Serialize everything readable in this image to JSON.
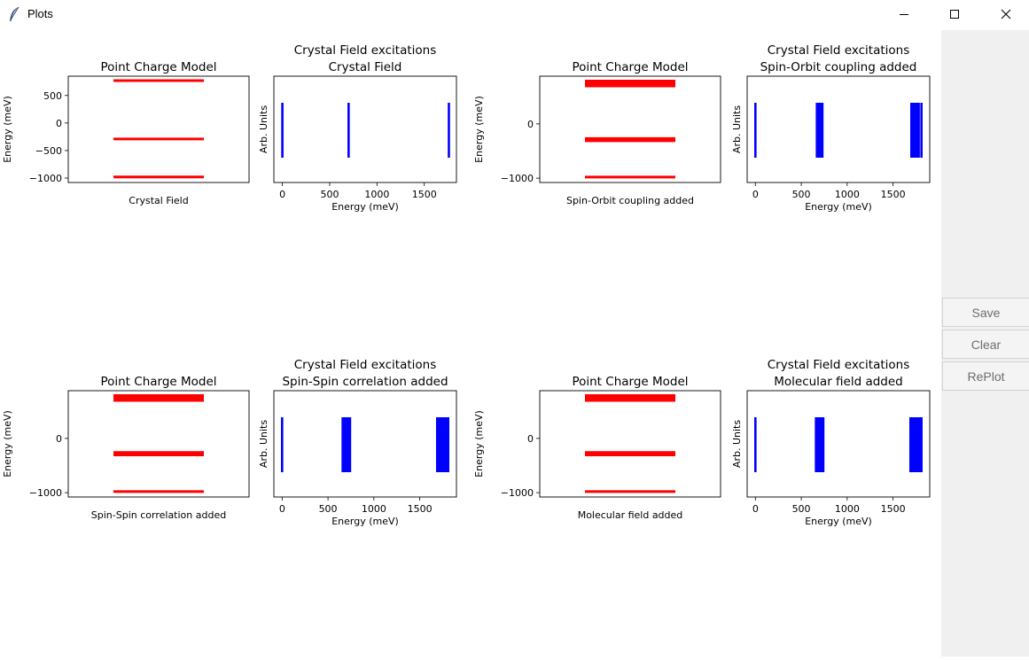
{
  "window": {
    "title": "Plots"
  },
  "side_panel": {
    "save_label": "Save",
    "clear_label": "Clear",
    "replot_label": "RePlot"
  },
  "colors": {
    "levels": "#ff0000",
    "excitations": "#0000ff"
  },
  "chart_data": [
    {
      "type": "energy-levels",
      "title": "Point Charge Model",
      "xlabel": "Crystal Field",
      "ylabel": "Energy (meV)",
      "ylim": [
        -1080,
        850
      ],
      "yticks": [
        500,
        0,
        -500,
        -1000
      ],
      "ytick_labels": [
        "500",
        "0",
        "−500",
        "−1000"
      ],
      "levels": [
        770,
        -290,
        -980
      ],
      "color": "#ff0000"
    },
    {
      "type": "excitations",
      "title": "Crystal Field excitations",
      "subtitle": "Crystal Field",
      "xlabel": "Energy (meV)",
      "ylabel": "Arb. Units",
      "xlim": [
        -90,
        1840
      ],
      "xticks": [
        0,
        500,
        1000,
        1500
      ],
      "xtick_labels": [
        "0",
        "500",
        "1000",
        "1500"
      ],
      "lines": [
        0,
        700,
        1760
      ],
      "color": "#0000ff"
    },
    {
      "type": "energy-levels",
      "title": "Point Charge Model",
      "xlabel": "Spin-Orbit coupling added",
      "ylabel": "Energy (meV)",
      "ylim": [
        -1080,
        880
      ],
      "yticks": [
        0,
        -1000
      ],
      "ytick_labels": [
        "0",
        "−1000"
      ],
      "levels": [
        790,
        760,
        730,
        700,
        -270,
        -290,
        -310,
        -980
      ],
      "color": "#ff0000"
    },
    {
      "type": "excitations",
      "title": "Crystal Field excitations",
      "subtitle": "Spin-Orbit coupling added",
      "xlabel": "Energy (meV)",
      "ylabel": "Arb. Units",
      "xlim": [
        -90,
        1900
      ],
      "xticks": [
        0,
        500,
        1000,
        1500
      ],
      "xtick_labels": [
        "0",
        "500",
        "1000",
        "1500"
      ],
      "lines": [
        0,
        670,
        690,
        710,
        730,
        1700,
        1720,
        1740,
        1760,
        1780,
        1810
      ],
      "color": "#0000ff"
    },
    {
      "type": "energy-levels",
      "title": "Point Charge Model",
      "xlabel": "Spin-Spin correlation added",
      "ylabel": "Energy (meV)",
      "ylim": [
        -1080,
        880
      ],
      "yticks": [
        0,
        -1000
      ],
      "ytick_labels": [
        "0",
        "−1000"
      ],
      "levels": [
        790,
        760,
        730,
        700,
        -260,
        -275,
        -290,
        -305,
        -980
      ],
      "color": "#ff0000"
    },
    {
      "type": "excitations",
      "title": "Crystal Field excitations",
      "subtitle": "Spin-Spin correlation added",
      "xlabel": "Energy (meV)",
      "ylabel": "Arb. Units",
      "xlim": [
        -90,
        1900
      ],
      "xticks": [
        0,
        500,
        1000,
        1500
      ],
      "xtick_labels": [
        "0",
        "500",
        "1000",
        "1500"
      ],
      "lines": [
        0,
        660,
        680,
        700,
        720,
        740,
        1690,
        1710,
        1730,
        1750,
        1770,
        1790,
        1810
      ],
      "color": "#0000ff"
    },
    {
      "type": "energy-levels",
      "title": "Point Charge Model",
      "xlabel": "Molecular field added",
      "ylabel": "Energy (meV)",
      "ylim": [
        -1080,
        880
      ],
      "yticks": [
        0,
        -1000
      ],
      "ytick_labels": [
        "0",
        "−1000"
      ],
      "levels": [
        790,
        760,
        730,
        700,
        -260,
        -275,
        -290,
        -305,
        -980
      ],
      "color": "#ff0000"
    },
    {
      "type": "excitations",
      "title": "Crystal Field excitations",
      "subtitle": "Molecular field added",
      "xlabel": "Energy (meV)",
      "ylabel": "Arb. Units",
      "xlim": [
        -90,
        1900
      ],
      "xticks": [
        0,
        500,
        1000,
        1500
      ],
      "xtick_labels": [
        "0",
        "500",
        "1000",
        "1500"
      ],
      "lines": [
        0,
        660,
        680,
        700,
        720,
        740,
        1690,
        1710,
        1730,
        1750,
        1770,
        1790,
        1810
      ],
      "color": "#0000ff"
    }
  ]
}
